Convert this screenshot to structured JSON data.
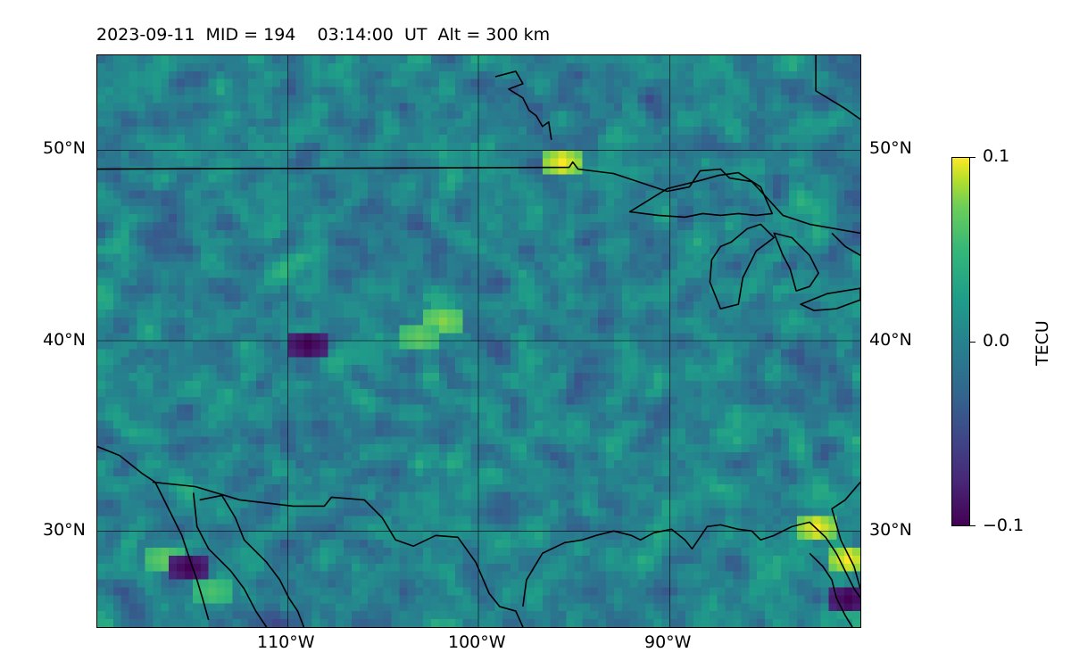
{
  "title": "2023-09-11  MID = 194    03:14:00  UT  Alt = 300 km",
  "map": {
    "type": "heatmap",
    "projection": "plate carree",
    "lon_range": [
      -120,
      -80
    ],
    "lat_range": [
      25,
      55
    ],
    "gridlines": true,
    "colormap": "viridis",
    "coastlines": true,
    "borders": true
  },
  "axes": {
    "lat_labels_left": [
      "50°N",
      "40°N",
      "30°N"
    ],
    "lat_labels_right": [
      "50°N",
      "40°N",
      "30°N"
    ],
    "lon_labels": [
      "110°W",
      "100°W",
      "90°W"
    ],
    "lat_values": [
      50,
      40,
      30
    ],
    "lon_values": [
      -110,
      -100,
      -90
    ]
  },
  "colorbar": {
    "label": "TECU",
    "min": -0.1,
    "max": 0.1,
    "tick_labels": [
      "0.1",
      "0.0",
      "−0.1"
    ],
    "tick_values": [
      0.1,
      0.0,
      -0.1
    ]
  },
  "chart_data": {
    "type": "heatmap",
    "title": "2023-09-11  MID = 194    03:14:00  UT  Alt = 300 km",
    "xlabel": "",
    "ylabel": "",
    "xlim": [
      -120,
      -80
    ],
    "ylim": [
      25,
      55
    ],
    "colorbar_label": "TECU",
    "value_range": [
      -0.1,
      0.1
    ],
    "notable_features": [
      {
        "lon": -96,
        "lat": 49.5,
        "value": 0.1
      },
      {
        "lon": -82.5,
        "lat": 30.5,
        "value": 0.1
      },
      {
        "lon": -81,
        "lat": 28.8,
        "value": 0.1
      },
      {
        "lon": -102,
        "lat": 41.3,
        "value": 0.08
      },
      {
        "lon": -103.5,
        "lat": 40.6,
        "value": 0.07
      },
      {
        "lon": -116.5,
        "lat": 28.7,
        "value": 0.07
      },
      {
        "lon": -114,
        "lat": 27,
        "value": 0.06
      },
      {
        "lon": -109,
        "lat": 40,
        "value": -0.1
      },
      {
        "lon": -115.5,
        "lat": 28.2,
        "value": -0.1
      },
      {
        "lon": -81,
        "lat": 26.5,
        "value": -0.1
      }
    ]
  }
}
